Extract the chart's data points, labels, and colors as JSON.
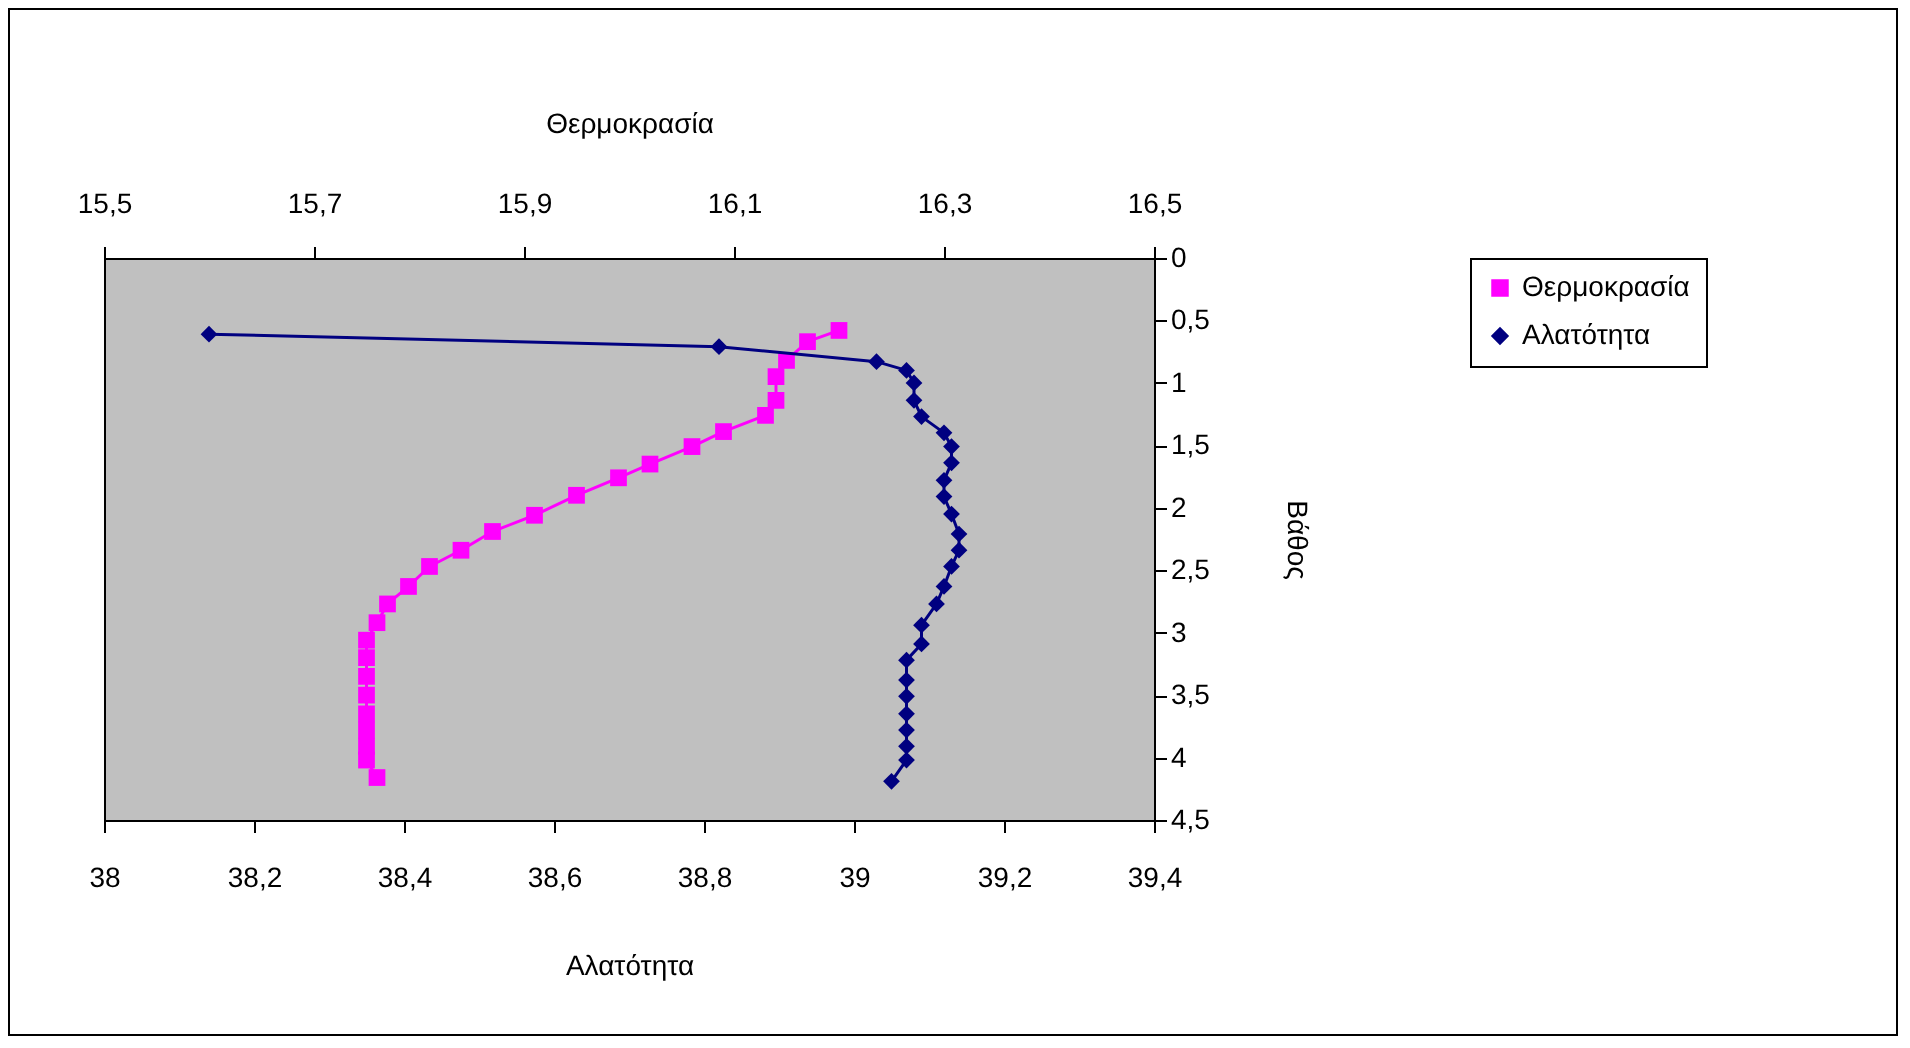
{
  "chart_data": {
    "type": "line",
    "xlabel": "Αλατότητα",
    "x2label": "Θερμοκρασία",
    "ylabel": "Βάθος",
    "xlim": [
      38,
      39.4
    ],
    "xticks": [
      38,
      {
        "value": 38.2,
        "label": "38,2"
      },
      {
        "value": 38.4,
        "label": "38,4"
      },
      {
        "value": 38.6,
        "label": "38,6"
      },
      {
        "value": 38.8,
        "label": "38,8"
      },
      39,
      {
        "value": 39.2,
        "label": "39,2"
      },
      {
        "value": 39.4,
        "label": "39,4"
      }
    ],
    "x2lim": [
      15.5,
      16.5
    ],
    "x2ticks": [
      {
        "value": 15.5,
        "label": "15,5"
      },
      {
        "value": 15.7,
        "label": "15,7"
      },
      {
        "value": 15.9,
        "label": "15,9"
      },
      {
        "value": 16.1,
        "label": "16,1"
      },
      {
        "value": 16.3,
        "label": "16,3"
      },
      {
        "value": 16.5,
        "label": "16,5"
      }
    ],
    "ylim": [
      4.5,
      0
    ],
    "yticks": [
      0,
      {
        "value": 0.5,
        "label": "0,5"
      },
      1,
      {
        "value": 1.5,
        "label": "1,5"
      },
      2,
      {
        "value": 2.5,
        "label": "2,5"
      },
      3,
      {
        "value": 3.5,
        "label": "3,5"
      },
      4,
      {
        "value": 4.5,
        "label": "4,5"
      }
    ],
    "grid": false,
    "legend": "right",
    "line_style": "solid",
    "series": [
      {
        "name": "Θερμοκρασία",
        "color": "#ff00ff",
        "marker": "square",
        "axis": "x2",
        "x": [
          16.2,
          16.17,
          16.15,
          16.14,
          16.14,
          16.13,
          16.09,
          16.06,
          16.02,
          15.99,
          15.95,
          15.91,
          15.87,
          15.84,
          15.81,
          15.79,
          15.77,
          15.76,
          15.75,
          15.75,
          15.75,
          15.75,
          15.75,
          15.75,
          15.75,
          15.75,
          15.76
        ],
        "values": [
          0.58,
          0.67,
          0.82,
          0.95,
          1.14,
          1.26,
          1.39,
          1.51,
          1.65,
          1.76,
          1.9,
          2.06,
          2.19,
          2.34,
          2.47,
          2.63,
          2.77,
          2.92,
          3.06,
          3.2,
          3.35,
          3.5,
          3.65,
          3.78,
          3.91,
          4.02,
          4.16
        ]
      },
      {
        "name": "Αλατότητα",
        "color": "#000080",
        "marker": "diamond",
        "x": [
          38.14,
          38.82,
          39.03,
          39.07,
          39.08,
          39.08,
          39.09,
          39.12,
          39.13,
          39.13,
          39.12,
          39.12,
          39.13,
          39.14,
          39.14,
          39.13,
          39.12,
          39.11,
          39.09,
          39.09,
          39.07,
          39.07,
          39.07,
          39.07,
          39.07,
          39.07,
          39.07,
          39.05
        ],
        "values": [
          0.61,
          0.71,
          0.83,
          0.9,
          1.0,
          1.14,
          1.27,
          1.4,
          1.51,
          1.64,
          1.78,
          1.91,
          2.05,
          2.21,
          2.34,
          2.47,
          2.63,
          2.77,
          2.94,
          3.09,
          3.22,
          3.38,
          3.51,
          3.65,
          3.78,
          3.91,
          4.02,
          4.19
        ]
      }
    ]
  }
}
